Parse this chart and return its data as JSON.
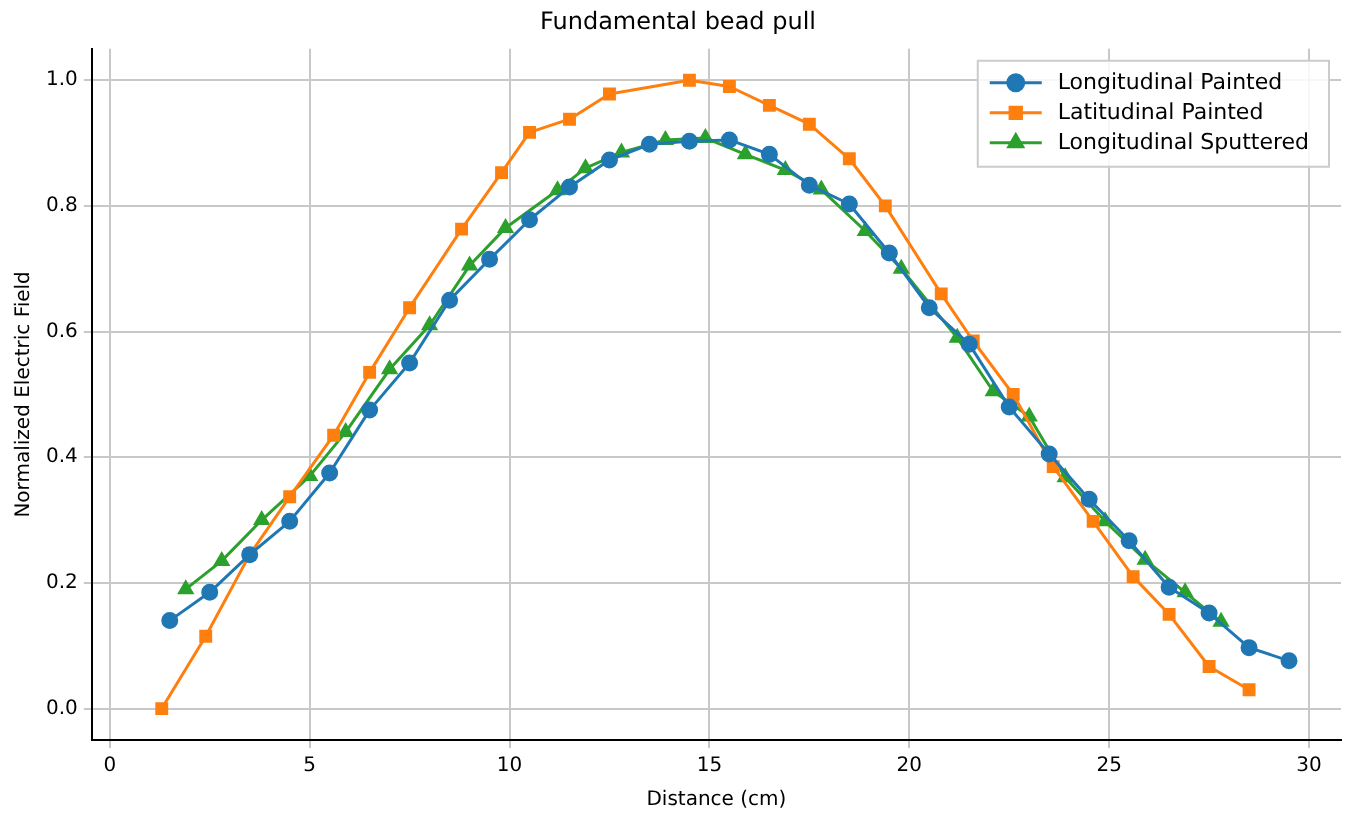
{
  "chart_data": {
    "type": "line",
    "title": "Fundamental bead pull",
    "xlabel": "Distance (cm)",
    "ylabel": "Normalized Electric Field",
    "xlim": [
      -0.45,
      30.8
    ],
    "xticks": [
      0,
      5,
      10,
      15,
      20,
      25,
      30
    ],
    "ylim": [
      -0.05,
      1.05
    ],
    "yticks": [
      {
        "value": 0,
        "label": "0.0"
      },
      {
        "value": 0.2,
        "label": "0.2"
      },
      {
        "value": 0.4,
        "label": "0.4"
      },
      {
        "value": 0.6,
        "label": "0.6"
      },
      {
        "value": 0.8,
        "label": "0.8"
      },
      {
        "value": 1,
        "label": "1.0"
      }
    ],
    "grid": true,
    "legend": "top right",
    "series": [
      {
        "name": "Longitudinal Painted",
        "color": "#1f77b4",
        "marker": "circle",
        "x": [
          1.5,
          2.5,
          3.5,
          4.5,
          5.5,
          6.5,
          7.5,
          8.5,
          9.5,
          10.5,
          11.5,
          12.5,
          13.5,
          14.5,
          15.5,
          16.5,
          17.5,
          18.5,
          19.5,
          20.5,
          21.5,
          22.5,
          23.5,
          24.5,
          25.5,
          26.5,
          27.5,
          28.5,
          29.5
        ],
        "values": [
          0.14,
          0.185,
          0.245,
          0.298,
          0.375,
          0.475,
          0.55,
          0.65,
          0.715,
          0.778,
          0.83,
          0.873,
          0.898,
          0.903,
          0.905,
          0.882,
          0.833,
          0.803,
          0.725,
          0.638,
          0.58,
          0.48,
          0.405,
          0.333,
          0.267,
          0.193,
          0.152,
          0.097,
          0.076
        ]
      },
      {
        "name": "Latitudinal Painted",
        "color": "#ff7f0e",
        "marker": "square",
        "x": [
          1.3,
          2.4,
          3.5,
          4.5,
          5.6,
          6.5,
          7.5,
          8.8,
          9.8,
          10.5,
          11.5,
          12.5,
          14.5,
          15.5,
          16.5,
          17.5,
          18.5,
          19.4,
          20.8,
          21.6,
          22.6,
          23.6,
          24.6,
          25.6,
          26.5,
          27.5,
          28.5
        ],
        "values": [
          0.0,
          0.115,
          0.245,
          0.337,
          0.435,
          0.535,
          0.638,
          0.763,
          0.853,
          0.917,
          0.938,
          0.978,
          1.0,
          0.99,
          0.96,
          0.93,
          0.875,
          0.8,
          0.66,
          0.585,
          0.5,
          0.385,
          0.298,
          0.21,
          0.15,
          0.067,
          0.03
        ]
      },
      {
        "name": "Longitudinal Sputtered",
        "color": "#2ca02c",
        "marker": "triangle",
        "x": [
          1.9,
          2.8,
          3.8,
          5.0,
          5.9,
          7.0,
          8.0,
          9.0,
          9.9,
          11.2,
          11.9,
          12.8,
          13.9,
          14.9,
          15.9,
          16.9,
          17.8,
          18.9,
          19.8,
          21.2,
          22.1,
          23.0,
          23.9,
          24.9,
          25.9,
          26.9,
          27.8
        ],
        "values": [
          0.19,
          0.235,
          0.3,
          0.37,
          0.44,
          0.54,
          0.61,
          0.705,
          0.765,
          0.825,
          0.86,
          0.885,
          0.905,
          0.908,
          0.882,
          0.857,
          0.826,
          0.76,
          0.7,
          0.59,
          0.505,
          0.465,
          0.368,
          0.298,
          0.237,
          0.185,
          0.138
        ]
      }
    ]
  }
}
